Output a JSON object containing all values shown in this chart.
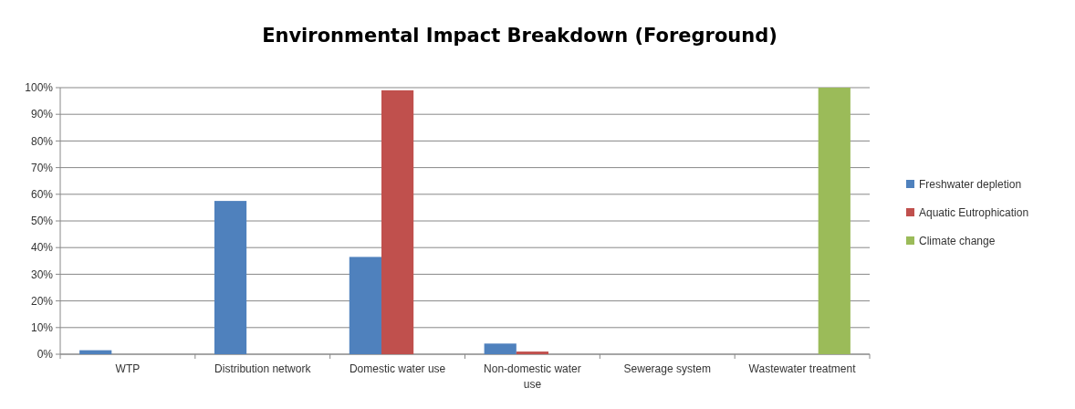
{
  "chart_data": {
    "type": "bar",
    "title": "Environmental Impact Breakdown (Foreground)",
    "categories": [
      "WTP",
      "Distribution network",
      "Domestic water use",
      "Non-domestic water use",
      "Sewerage system",
      "Wastewater treatment"
    ],
    "series": [
      {
        "name": "Freshwater depletion",
        "color": "#4f81bd",
        "values": [
          1.5,
          57.5,
          36.5,
          4,
          0,
          0
        ]
      },
      {
        "name": "Aquatic Eutrophication",
        "color": "#c0504d",
        "values": [
          0,
          0,
          99,
          1,
          0,
          0
        ]
      },
      {
        "name": "Climate change",
        "color": "#9bbb59",
        "values": [
          0,
          0,
          0,
          0,
          0,
          100
        ]
      }
    ],
    "ylim": [
      0,
      100
    ],
    "yticks": [
      {
        "value": 0,
        "label": "0%"
      },
      {
        "value": 10,
        "label": "10%"
      },
      {
        "value": 20,
        "label": "20%"
      },
      {
        "value": 30,
        "label": "30%"
      },
      {
        "value": 40,
        "label": "40%"
      },
      {
        "value": 50,
        "label": "50%"
      },
      {
        "value": 60,
        "label": "60%"
      },
      {
        "value": 70,
        "label": "70%"
      },
      {
        "value": 80,
        "label": "80%"
      },
      {
        "value": 90,
        "label": "90%"
      },
      {
        "value": 100,
        "label": "100%"
      }
    ],
    "grid": "y",
    "legend": "right"
  }
}
